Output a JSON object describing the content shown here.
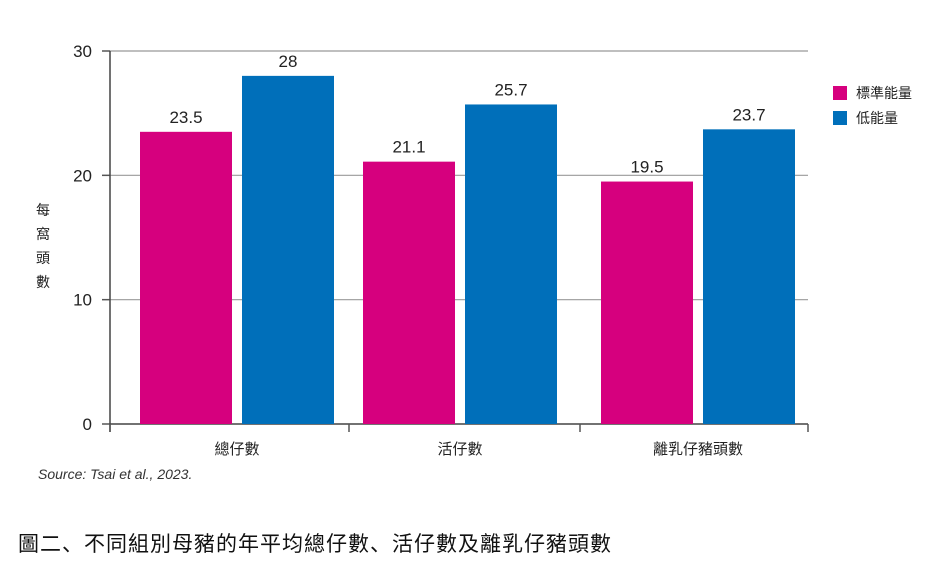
{
  "chart_data": {
    "type": "bar",
    "categories": [
      "總仔數",
      "活仔數",
      "離乳仔豬頭數"
    ],
    "series": [
      {
        "name": "標準能量",
        "values": [
          23.5,
          21.1,
          19.5
        ],
        "color": "#d6007e"
      },
      {
        "name": "低能量",
        "values": [
          28,
          25.7,
          23.7
        ],
        "color": "#006fba"
      }
    ],
    "data_labels": [
      [
        "23.5",
        "28"
      ],
      [
        "21.1",
        "25.7"
      ],
      [
        "19.5",
        "23.7"
      ]
    ],
    "ylabel": "每窩頭數",
    "ylim": [
      0,
      30
    ],
    "yticks": [
      0,
      10,
      20,
      30
    ],
    "grid": true,
    "legend_position": "right"
  },
  "source": "Source: Tsai et al., 2023.",
  "caption": "圖二、不同組別母豬的年平均總仔數、活仔數及離乳仔豬頭數"
}
